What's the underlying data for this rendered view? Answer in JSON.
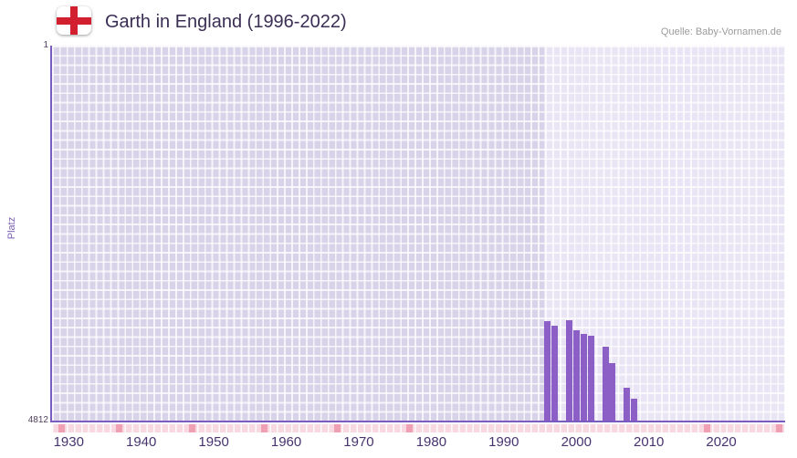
{
  "header": {
    "title": "Garth in England (1996-2022)",
    "source": "Quelle: Baby-Vornamen.de"
  },
  "axis": {
    "ylabel": "Platz",
    "y_top_label": "1",
    "y_bottom_label": "4812"
  },
  "chart_data": {
    "type": "bar",
    "title": "Garth in England (1996-2022)",
    "xlabel": "",
    "ylabel": "Platz",
    "y_axis": {
      "top": 1,
      "bottom": 4812,
      "inverted": true
    },
    "x_range": [
      1927.7,
      2028.8
    ],
    "x_ticks": [
      1930,
      1940,
      1950,
      1960,
      1970,
      1980,
      1990,
      2000,
      2010,
      2020
    ],
    "zone_start_year": 1995.5,
    "grid": true,
    "legend": null,
    "bar_color": "#8c5fc6",
    "points": [
      {
        "year": 1996,
        "rank": 3540
      },
      {
        "year": 1997,
        "rank": 3590
      },
      {
        "year": 1999,
        "rank": 3530
      },
      {
        "year": 2000,
        "rank": 3650
      },
      {
        "year": 2001,
        "rank": 3700
      },
      {
        "year": 2002,
        "rank": 3720
      },
      {
        "year": 2004,
        "rank": 3860
      },
      {
        "year": 2005,
        "rank": 4070
      },
      {
        "year": 2007,
        "rank": 4390
      },
      {
        "year": 2008,
        "rank": 4530
      }
    ],
    "strip": {
      "color": "#f8d8e1",
      "marker_color": "#efa0b2",
      "marker_years": [
        1929,
        1937,
        1947,
        1957,
        1967,
        1977,
        2018,
        2028
      ]
    }
  }
}
